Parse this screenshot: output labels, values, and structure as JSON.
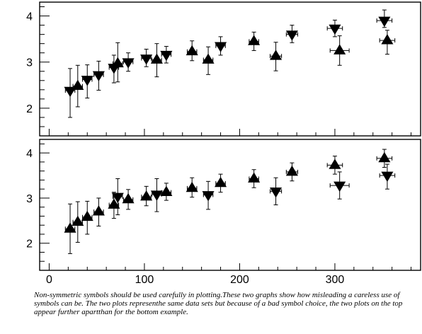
{
  "chart_data": {
    "type": "scatter",
    "shared_x_ticks": [
      "0",
      "100",
      "200",
      "300"
    ],
    "xlim": [
      -10,
      390
    ],
    "caption": "Non-symmetric symbols should be used carefully in plotting.These two graphs show how misleading a careless use of symbols can be. The two plots representhe same data sets but because of a bad symbol choice, the two plots on the top appear further apartthan for the bottom example.",
    "panels": [
      {
        "ylim": [
          1.4,
          4.3
        ],
        "y_ticks": [
          "2",
          "3",
          "4"
        ],
        "series": [
          {
            "marker": "triangle-down",
            "points": [
              {
                "x": 22,
                "y": 2.38,
                "xerr": 5,
                "yerr_low": 0.58,
                "yerr_high": 0.48
              },
              {
                "x": 40,
                "y": 2.62,
                "xerr": 5,
                "yerr_low": 0.4,
                "yerr_high": 0.32
              },
              {
                "x": 52,
                "y": 2.72,
                "xerr": 5,
                "yerr_low": 0.33,
                "yerr_high": 0.3
              },
              {
                "x": 68,
                "y": 2.88,
                "xerr": 5,
                "yerr_low": 0.33,
                "yerr_high": 0.27
              },
              {
                "x": 83,
                "y": 3.0,
                "xerr": 5,
                "yerr_low": 0.2,
                "yerr_high": 0.2
              },
              {
                "x": 102,
                "y": 3.08,
                "xerr": 5,
                "yerr_low": 0.18,
                "yerr_high": 0.2
              },
              {
                "x": 123,
                "y": 3.16,
                "xerr": 5,
                "yerr_low": 0.18,
                "yerr_high": 0.18
              },
              {
                "x": 180,
                "y": 3.35,
                "xerr": 5,
                "yerr_low": 0.2,
                "yerr_high": 0.2
              },
              {
                "x": 255,
                "y": 3.6,
                "xerr": 6,
                "yerr_low": 0.18,
                "yerr_high": 0.2
              },
              {
                "x": 300,
                "y": 3.73,
                "xerr": 8,
                "yerr_low": 0.18,
                "yerr_high": 0.18
              },
              {
                "x": 352,
                "y": 3.9,
                "xerr": 8,
                "yerr_low": 0.15,
                "yerr_high": 0.23
              }
            ]
          },
          {
            "marker": "triangle-up",
            "points": [
              {
                "x": 30,
                "y": 2.48,
                "xerr": 5,
                "yerr_low": 0.45,
                "yerr_high": 0.45
              },
              {
                "x": 72,
                "y": 2.97,
                "xerr": 5,
                "yerr_low": 0.4,
                "yerr_high": 0.45
              },
              {
                "x": 113,
                "y": 3.05,
                "xerr": 5,
                "yerr_low": 0.37,
                "yerr_high": 0.35
              },
              {
                "x": 150,
                "y": 3.23,
                "xerr": 5,
                "yerr_low": 0.2,
                "yerr_high": 0.23
              },
              {
                "x": 167,
                "y": 3.05,
                "xerr": 5,
                "yerr_low": 0.32,
                "yerr_high": 0.28
              },
              {
                "x": 215,
                "y": 3.45,
                "xerr": 5,
                "yerr_low": 0.2,
                "yerr_high": 0.2
              },
              {
                "x": 238,
                "y": 3.13,
                "xerr": 6,
                "yerr_low": 0.32,
                "yerr_high": 0.3
              },
              {
                "x": 305,
                "y": 3.25,
                "xerr": 10,
                "yerr_low": 0.32,
                "yerr_high": 0.32
              },
              {
                "x": 355,
                "y": 3.47,
                "xerr": 8,
                "yerr_low": 0.3,
                "yerr_high": 0.22
              }
            ]
          }
        ]
      },
      {
        "ylim": [
          1.4,
          4.3
        ],
        "y_ticks": [
          "2",
          "3",
          "4"
        ],
        "series": [
          {
            "marker": "triangle-up",
            "points": [
              {
                "x": 22,
                "y": 2.32,
                "xerr": 5,
                "yerr_low": 0.55,
                "yerr_high": 0.55
              },
              {
                "x": 30,
                "y": 2.47,
                "xerr": 5,
                "yerr_low": 0.45,
                "yerr_high": 0.45
              },
              {
                "x": 40,
                "y": 2.58,
                "xerr": 5,
                "yerr_low": 0.38,
                "yerr_high": 0.35
              },
              {
                "x": 52,
                "y": 2.7,
                "xerr": 5,
                "yerr_low": 0.32,
                "yerr_high": 0.3
              },
              {
                "x": 68,
                "y": 2.85,
                "xerr": 5,
                "yerr_low": 0.3,
                "yerr_high": 0.28
              },
              {
                "x": 83,
                "y": 2.97,
                "xerr": 5,
                "yerr_low": 0.22,
                "yerr_high": 0.22
              },
              {
                "x": 102,
                "y": 3.03,
                "xerr": 5,
                "yerr_low": 0.2,
                "yerr_high": 0.23
              },
              {
                "x": 123,
                "y": 3.13,
                "xerr": 5,
                "yerr_low": 0.18,
                "yerr_high": 0.2
              },
              {
                "x": 150,
                "y": 3.22,
                "xerr": 5,
                "yerr_low": 0.2,
                "yerr_high": 0.23
              },
              {
                "x": 180,
                "y": 3.33,
                "xerr": 5,
                "yerr_low": 0.2,
                "yerr_high": 0.2
              },
              {
                "x": 215,
                "y": 3.43,
                "xerr": 5,
                "yerr_low": 0.2,
                "yerr_high": 0.2
              },
              {
                "x": 255,
                "y": 3.58,
                "xerr": 6,
                "yerr_low": 0.2,
                "yerr_high": 0.2
              },
              {
                "x": 300,
                "y": 3.73,
                "xerr": 8,
                "yerr_low": 0.2,
                "yerr_high": 0.2
              },
              {
                "x": 352,
                "y": 3.88,
                "xerr": 8,
                "yerr_low": 0.2,
                "yerr_high": 0.2
              }
            ]
          },
          {
            "marker": "triangle-down",
            "points": [
              {
                "x": 72,
                "y": 3.03,
                "xerr": 5,
                "yerr_low": 0.4,
                "yerr_high": 0.4
              },
              {
                "x": 113,
                "y": 3.08,
                "xerr": 5,
                "yerr_low": 0.38,
                "yerr_high": 0.35
              },
              {
                "x": 167,
                "y": 3.07,
                "xerr": 5,
                "yerr_low": 0.32,
                "yerr_high": 0.3
              },
              {
                "x": 238,
                "y": 3.15,
                "xerr": 6,
                "yerr_low": 0.3,
                "yerr_high": 0.3
              },
              {
                "x": 305,
                "y": 3.28,
                "xerr": 10,
                "yerr_low": 0.3,
                "yerr_high": 0.3
              },
              {
                "x": 355,
                "y": 3.5,
                "xerr": 8,
                "yerr_low": 0.3,
                "yerr_high": 0.25
              }
            ]
          }
        ]
      }
    ]
  }
}
